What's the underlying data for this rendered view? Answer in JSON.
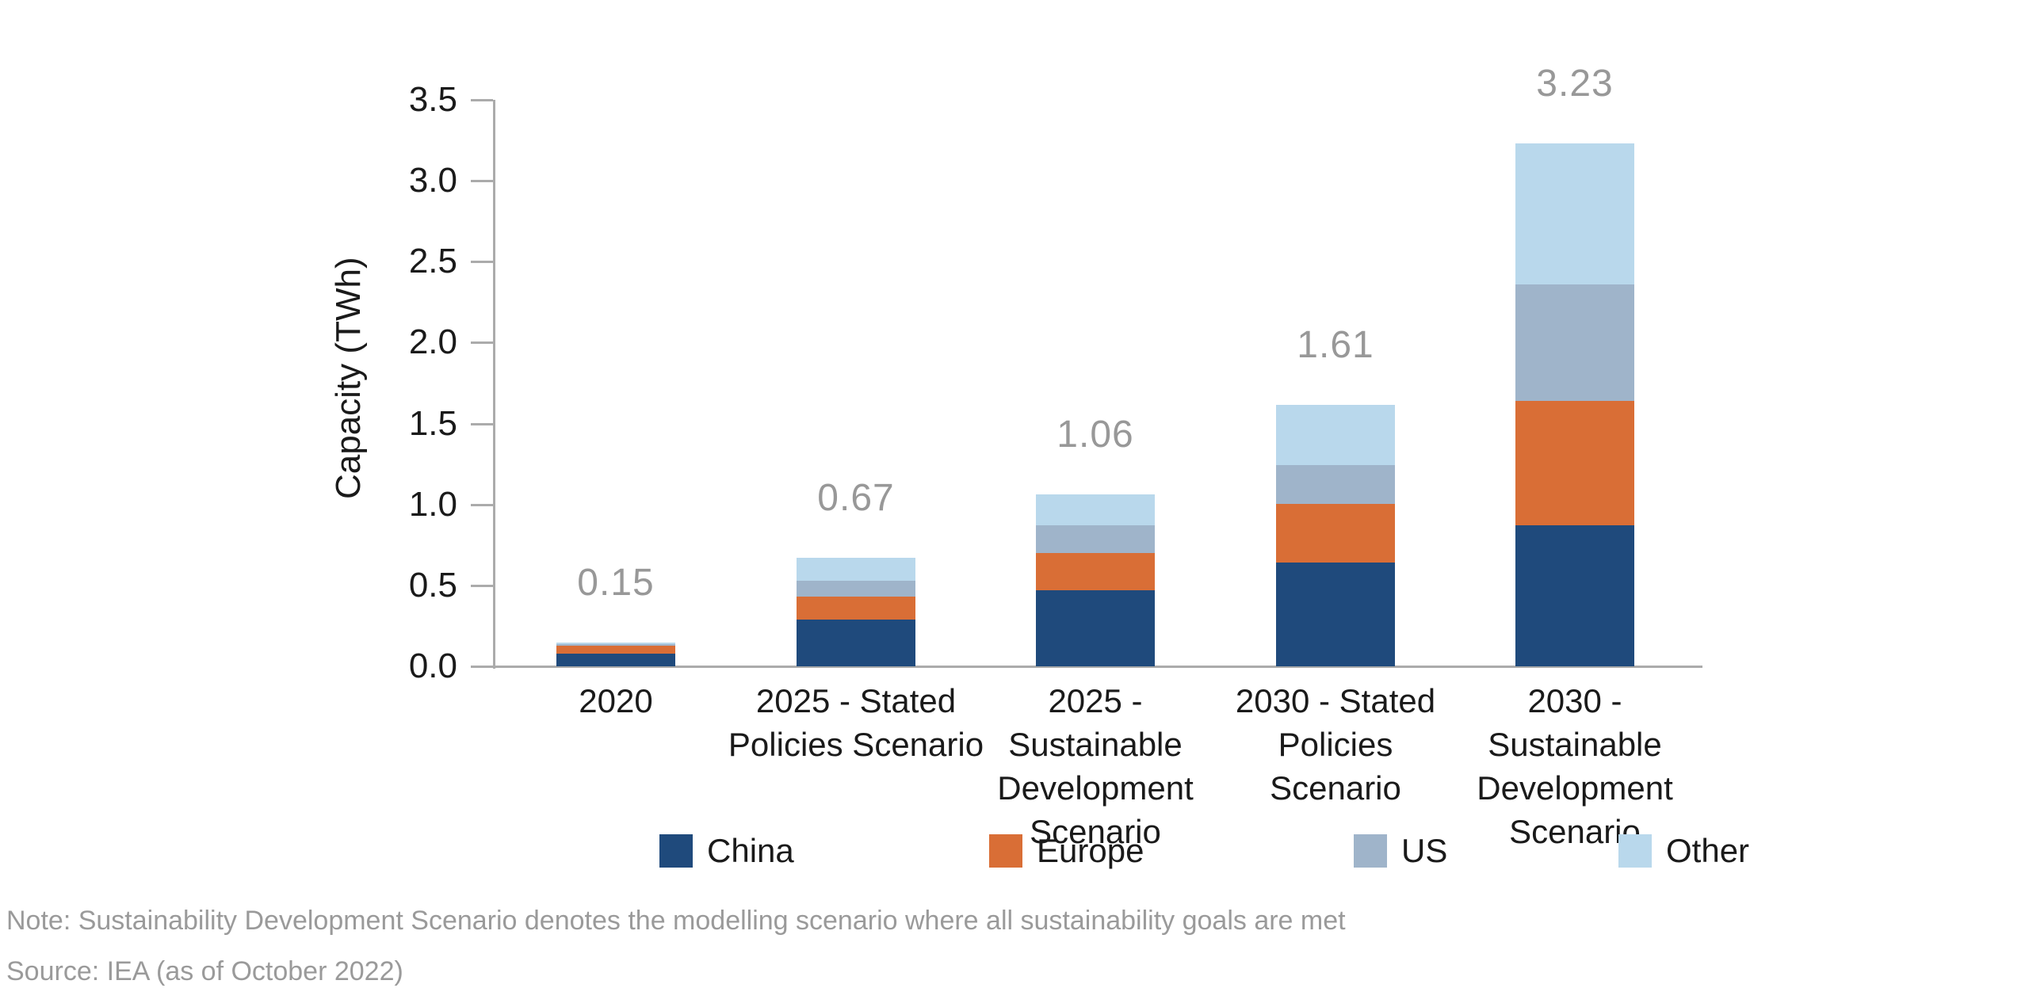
{
  "chart_data": {
    "type": "bar",
    "stacked": true,
    "title": "",
    "xlabel": "",
    "ylabel": "Capacity (TWh)",
    "ylim": [
      0,
      3.5
    ],
    "yticks": [
      "0.0",
      "0.5",
      "1.0",
      "1.5",
      "2.0",
      "2.5",
      "3.0",
      "3.5"
    ],
    "grid": false,
    "legend_position": "bottom",
    "categories": [
      "2020",
      "2025 - Stated Policies Scenario",
      "2025 - Sustainable Development Scenario",
      "2030 - Stated Policies Scenario",
      "2030 - Sustainable Development Scenario"
    ],
    "category_lines": [
      [
        "2020"
      ],
      [
        "2025 - Stated",
        "Policies Scenario"
      ],
      [
        "2025 -",
        "Sustainable",
        "Development",
        "Scenario"
      ],
      [
        "2030 - Stated",
        "Policies",
        "Scenario"
      ],
      [
        "2030 -",
        "Sustainable",
        "Development",
        "Scenario"
      ]
    ],
    "series": [
      {
        "name": "China",
        "color": "#1F4A7C",
        "values": [
          0.08,
          0.29,
          0.47,
          0.64,
          0.87
        ]
      },
      {
        "name": "Europe",
        "color": "#D96E36",
        "values": [
          0.05,
          0.14,
          0.23,
          0.36,
          0.77
        ]
      },
      {
        "name": "US",
        "color": "#9FB4CA",
        "values": [
          0.01,
          0.1,
          0.17,
          0.24,
          0.72
        ]
      },
      {
        "name": "Other",
        "color": "#B9D8EC",
        "values": [
          0.01,
          0.14,
          0.19,
          0.37,
          0.87
        ]
      }
    ],
    "totals": [
      "0.15",
      "0.67",
      "1.06",
      "1.61",
      "3.23"
    ]
  },
  "note": "Note: Sustainability Development Scenario denotes the modelling scenario where all sustainability goals are met",
  "source": "Source: IEA (as of October 2022)",
  "colors": {
    "axis": "#ABABAB",
    "tick_label": "#1A1A1A",
    "value_label": "#989898",
    "note_text": "#9A9A9A"
  }
}
